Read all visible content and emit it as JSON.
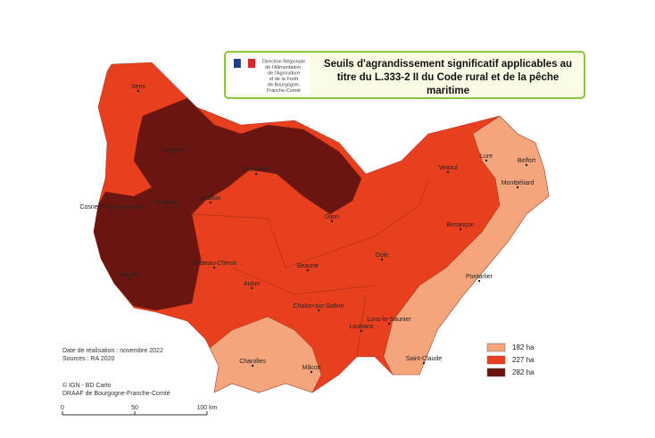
{
  "header": {
    "logo_text": [
      "Direction Régionale",
      "de l'Alimentation,",
      "de l'Agriculture",
      "et de la Forêt",
      "de Bourgogne-",
      "Franche-Comté"
    ],
    "title": [
      "Seuils d'agrandissement significatif applicables au",
      "titre du L.333-2 II du Code rural et de la pêche",
      "maritime"
    ]
  },
  "legend": [
    {
      "label": "182 ha",
      "color": "#f5a57b"
    },
    {
      "label": "227 ha",
      "color": "#e8401f"
    },
    {
      "label": "282 ha",
      "color": "#6b1511"
    }
  ],
  "cities": [
    "Sens",
    "Auxerre",
    "Montbard",
    "Clamecy",
    "Cosne-Cours-sur-Loire",
    "Avallon",
    "Nevers",
    "Château-Chinon",
    "Dijon",
    "Vesoul",
    "Lure",
    "Belfort",
    "Montbéliard",
    "Besançon",
    "Beaune",
    "Dole",
    "Autun",
    "Chalon-sur-Saône",
    "Pontarlier",
    "Louhans",
    "Lons-le-Saunier",
    "Charolles",
    "Mâcon",
    "Saint-Claude"
  ],
  "notes": [
    "Date de réalisation : novembre 2022",
    "Sources : RA 2020",
    "© IGN - BD Carto",
    "DRAAF de Bourgogne-Franche-Comté"
  ],
  "scale": [
    "0",
    "50",
    "100 km"
  ]
}
